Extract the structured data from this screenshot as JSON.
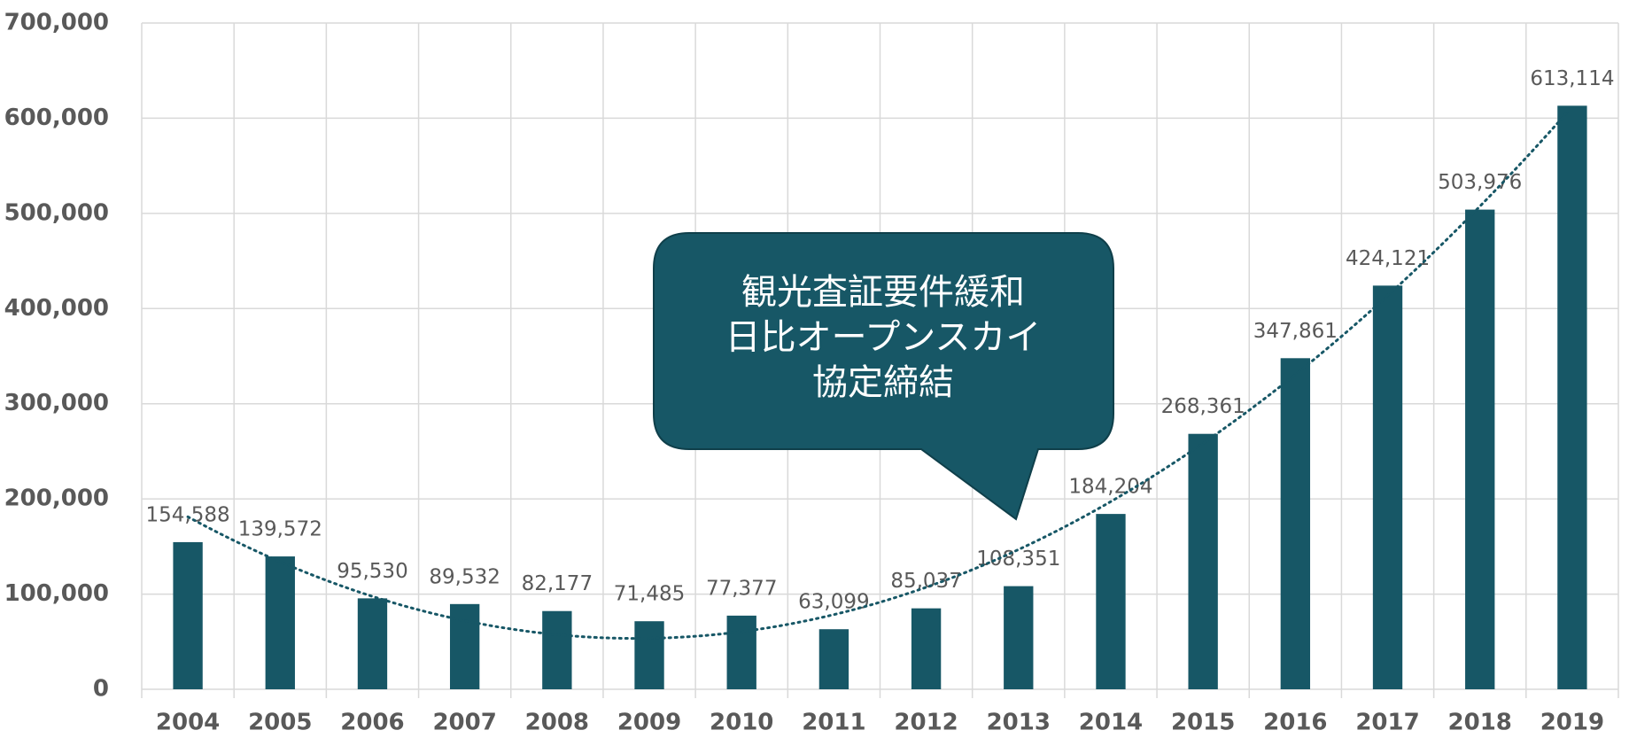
{
  "chart_data": {
    "type": "bar",
    "categories": [
      "2004",
      "2005",
      "2006",
      "2007",
      "2008",
      "2009",
      "2010",
      "2011",
      "2012",
      "2013",
      "2014",
      "2015",
      "2016",
      "2017",
      "2018",
      "2019"
    ],
    "values": [
      154588,
      139572,
      95530,
      89532,
      82177,
      71485,
      77377,
      63099,
      85037,
      108351,
      184204,
      268361,
      347861,
      424121,
      503976,
      613114
    ],
    "value_labels": [
      "154,588",
      "139,572",
      "95,530",
      "89,532",
      "82,177",
      "71,485",
      "77,377",
      "63,099",
      "85,037",
      "108,351",
      "184,204",
      "268,361",
      "347,861",
      "424,121",
      "503,976",
      "613,114"
    ],
    "color": "#175766",
    "ylim": [
      0,
      700000
    ],
    "yticks": [
      {
        "value": 0,
        "label": "0"
      },
      {
        "value": 100000,
        "label": "100,000"
      },
      {
        "value": 200000,
        "label": "200,000"
      },
      {
        "value": 300000,
        "label": "300,000"
      },
      {
        "value": 400000,
        "label": "400,000"
      },
      {
        "value": 500000,
        "label": "500,000"
      },
      {
        "value": 600000,
        "label": "600,000"
      },
      {
        "value": 700000,
        "label": "700,000"
      }
    ],
    "grid": true,
    "trendline": "polynomial",
    "annotation": [
      "観光査証要件緩和",
      "日比オープンスカイ",
      "協定締結"
    ]
  }
}
